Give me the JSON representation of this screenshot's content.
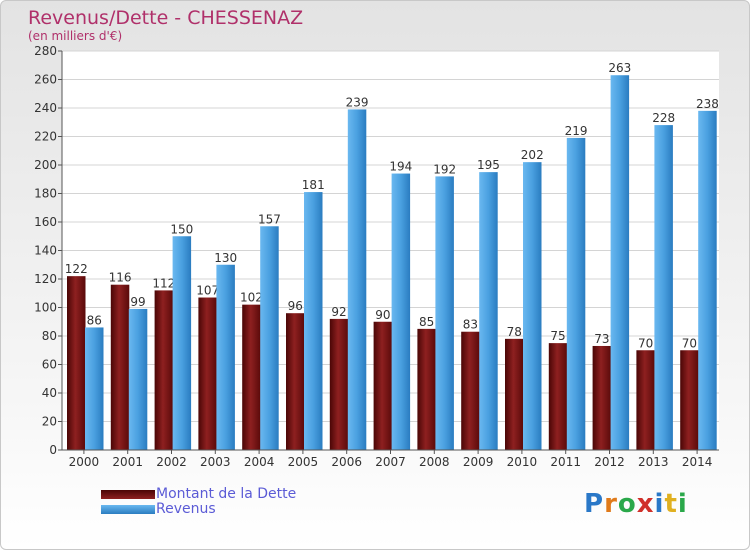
{
  "header": {
    "title": "Revenus/Dette - CHESSENAZ",
    "subtitle": "(en milliers d'€)"
  },
  "legend": {
    "debt_label": "Montant de la Dette",
    "revenue_label": "Revenus"
  },
  "logo": {
    "text": "Proxiti",
    "letters": [
      "P",
      "r",
      "o",
      "x",
      "i",
      "t",
      "i"
    ],
    "colors": [
      "#2a78c8",
      "#e07a1a",
      "#2aa84a",
      "#d0302a",
      "#2a78c8",
      "#e0b020",
      "#2aa84a"
    ]
  },
  "colors": {
    "debt": "#7a1414",
    "revenue": "#4aa0e0",
    "title": "#b0306a",
    "legend_text": "#5b5bd6"
  },
  "chart_data": {
    "type": "bar",
    "categories": [
      "2000",
      "2001",
      "2002",
      "2003",
      "2004",
      "2005",
      "2006",
      "2007",
      "2008",
      "2009",
      "2010",
      "2011",
      "2012",
      "2013",
      "2014"
    ],
    "series": [
      {
        "name": "Montant de la Dette",
        "values": [
          122,
          116,
          112,
          107,
          102,
          96,
          92,
          90,
          85,
          83,
          78,
          75,
          73,
          70,
          70
        ]
      },
      {
        "name": "Revenus",
        "values": [
          86,
          99,
          150,
          130,
          157,
          181,
          239,
          194,
          192,
          195,
          202,
          219,
          263,
          228,
          238
        ]
      }
    ],
    "yticks": [
      0,
      20,
      40,
      60,
      80,
      100,
      120,
      140,
      160,
      180,
      200,
      220,
      240,
      260,
      280
    ],
    "ylim": [
      0,
      280
    ],
    "grid": true,
    "legend_position": "bottom-left"
  }
}
